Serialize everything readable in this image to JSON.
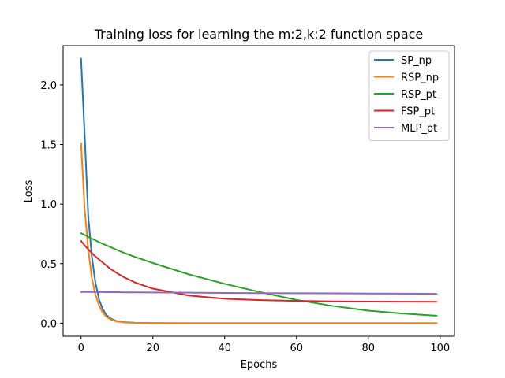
{
  "chart_data": {
    "type": "line",
    "title": "Training loss for learning the m:2,k:2 function space",
    "xlabel": "Epochs",
    "ylabel": "Loss",
    "xlim": [
      -5,
      104
    ],
    "ylim": [
      -0.11,
      2.33
    ],
    "xticks": [
      0,
      20,
      40,
      60,
      80,
      100
    ],
    "xtick_labels": [
      "0",
      "20",
      "40",
      "60",
      "80",
      "100"
    ],
    "yticks": [
      0.0,
      0.5,
      1.0,
      1.5,
      2.0
    ],
    "ytick_labels": [
      "0.0",
      "0.5",
      "1.0",
      "1.5",
      "2.0"
    ],
    "grid": false,
    "legend_position": "top-right",
    "x": [
      0,
      1,
      2,
      3,
      4,
      5,
      6,
      7,
      8,
      9,
      10,
      12,
      15,
      20,
      30,
      40,
      50,
      60,
      70,
      80,
      90,
      99
    ],
    "series": [
      {
        "name": "SP_np",
        "color": "#1f77b4",
        "values": [
          2.22,
          1.58,
          0.9,
          0.56,
          0.34,
          0.2,
          0.12,
          0.07,
          0.045,
          0.028,
          0.017,
          0.008,
          0.003,
          0.001,
          0.0,
          0.0,
          0.0,
          0.0,
          0.0,
          0.0,
          0.0,
          0.0
        ]
      },
      {
        "name": "RSP_np",
        "color": "#ff7f0e",
        "values": [
          1.51,
          0.96,
          0.62,
          0.38,
          0.24,
          0.15,
          0.09,
          0.055,
          0.035,
          0.022,
          0.014,
          0.006,
          0.002,
          0.001,
          0.0,
          0.0,
          0.0,
          0.0,
          0.0,
          0.0,
          0.0,
          0.0
        ]
      },
      {
        "name": "RSP_pt",
        "color": "#2ca02c",
        "values": [
          0.755,
          0.74,
          0.725,
          0.71,
          0.695,
          0.68,
          0.667,
          0.654,
          0.641,
          0.628,
          0.615,
          0.59,
          0.557,
          0.505,
          0.41,
          0.33,
          0.26,
          0.195,
          0.145,
          0.105,
          0.08,
          0.062
        ]
      },
      {
        "name": "FSP_pt",
        "color": "#d62728",
        "values": [
          0.69,
          0.653,
          0.62,
          0.59,
          0.56,
          0.535,
          0.51,
          0.485,
          0.46,
          0.44,
          0.42,
          0.385,
          0.342,
          0.29,
          0.232,
          0.205,
          0.193,
          0.187,
          0.183,
          0.181,
          0.18,
          0.179
        ]
      },
      {
        "name": "MLP_pt",
        "color": "#9467bd",
        "values": [
          0.262,
          0.262,
          0.262,
          0.261,
          0.261,
          0.261,
          0.261,
          0.26,
          0.26,
          0.26,
          0.26,
          0.259,
          0.259,
          0.258,
          0.256,
          0.254,
          0.252,
          0.251,
          0.25,
          0.249,
          0.248,
          0.246
        ]
      }
    ]
  }
}
